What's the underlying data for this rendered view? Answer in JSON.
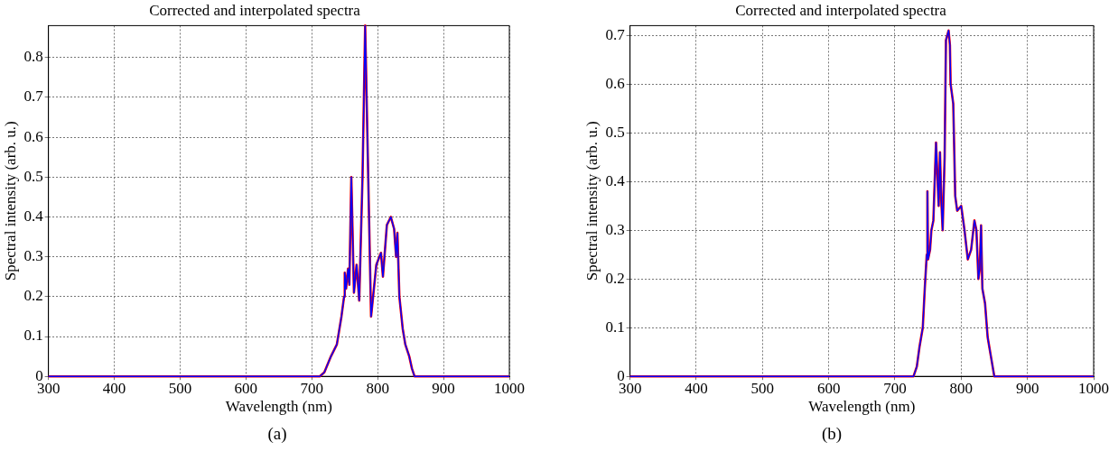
{
  "chart_data": [
    {
      "type": "line",
      "title": "Corrected and interpolated spectra",
      "xlabel": "Wavelength (nm)",
      "ylabel": "Spectral intensity (arb. u.)",
      "annotations": [
        "(a)"
      ],
      "x": [
        300,
        712,
        719,
        729,
        738,
        745,
        749,
        750,
        752,
        755,
        757,
        760,
        764,
        768,
        772,
        777,
        781,
        790,
        798,
        805,
        808,
        814,
        820,
        825,
        828,
        830,
        833,
        838,
        842,
        848,
        852,
        856,
        1000
      ],
      "series": [
        {
          "color": "#ff0000",
          "values": [
            0,
            0,
            0.01,
            0.05,
            0.08,
            0.15,
            0.2,
            0.26,
            0.22,
            0.27,
            0.23,
            0.5,
            0.21,
            0.28,
            0.19,
            0.5,
            0.88,
            0.15,
            0.28,
            0.31,
            0.25,
            0.38,
            0.4,
            0.37,
            0.3,
            0.36,
            0.2,
            0.12,
            0.08,
            0.05,
            0.02,
            0,
            0
          ]
        },
        {
          "color": "#0000ff",
          "values": [
            0,
            0,
            0.01,
            0.05,
            0.08,
            0.15,
            0.2,
            0.26,
            0.22,
            0.27,
            0.23,
            0.5,
            0.21,
            0.28,
            0.19,
            0.5,
            0.88,
            0.15,
            0.28,
            0.31,
            0.25,
            0.38,
            0.4,
            0.37,
            0.3,
            0.36,
            0.2,
            0.12,
            0.08,
            0.05,
            0.02,
            0,
            0
          ]
        }
      ],
      "xlim": [
        300,
        1000
      ],
      "xticks": [
        300,
        400,
        500,
        600,
        700,
        800,
        900,
        1000
      ],
      "ylim": [
        0,
        0.88
      ],
      "yticks": [
        0,
        0.1,
        0.2,
        0.3,
        0.4,
        0.5,
        0.6,
        0.7,
        0.8
      ],
      "grid": true,
      "legend": false,
      "marker": "none",
      "line_style": "solid"
    },
    {
      "type": "line",
      "title": "Corrected and interpolated spectra",
      "xlabel": "Wavelength (nm)",
      "ylabel": "Spectral intensity (arb. u.)",
      "annotations": [
        "(b)"
      ],
      "x": [
        300,
        728,
        733,
        737,
        742,
        745,
        748,
        749,
        750,
        753,
        755,
        758,
        762,
        766,
        768,
        770,
        772,
        775,
        777,
        781,
        783,
        784,
        788,
        791,
        794,
        800,
        805,
        810,
        815,
        820,
        823,
        826,
        828,
        830,
        832,
        836,
        840,
        845,
        850,
        1000
      ],
      "series": [
        {
          "color": "#ff0000",
          "values": [
            0,
            0,
            0.02,
            0.06,
            0.1,
            0.18,
            0.25,
            0.38,
            0.24,
            0.26,
            0.3,
            0.32,
            0.48,
            0.35,
            0.46,
            0.36,
            0.3,
            0.45,
            0.69,
            0.71,
            0.68,
            0.6,
            0.56,
            0.37,
            0.34,
            0.35,
            0.3,
            0.24,
            0.26,
            0.32,
            0.3,
            0.2,
            0.22,
            0.31,
            0.18,
            0.15,
            0.08,
            0.04,
            0,
            0
          ]
        },
        {
          "color": "#0000ff",
          "values": [
            0,
            0,
            0.02,
            0.06,
            0.1,
            0.18,
            0.25,
            0.38,
            0.24,
            0.26,
            0.3,
            0.32,
            0.48,
            0.35,
            0.46,
            0.36,
            0.3,
            0.45,
            0.69,
            0.71,
            0.68,
            0.6,
            0.56,
            0.37,
            0.34,
            0.35,
            0.3,
            0.24,
            0.26,
            0.32,
            0.3,
            0.2,
            0.22,
            0.31,
            0.18,
            0.15,
            0.08,
            0.04,
            0,
            0
          ]
        }
      ],
      "xlim": [
        300,
        1000
      ],
      "xticks": [
        300,
        400,
        500,
        600,
        700,
        800,
        900,
        1000
      ],
      "ylim": [
        0,
        0.72
      ],
      "yticks": [
        0,
        0.1,
        0.2,
        0.3,
        0.4,
        0.5,
        0.6,
        0.7
      ],
      "grid": true,
      "legend": false,
      "marker": "none",
      "line_style": "solid"
    }
  ]
}
